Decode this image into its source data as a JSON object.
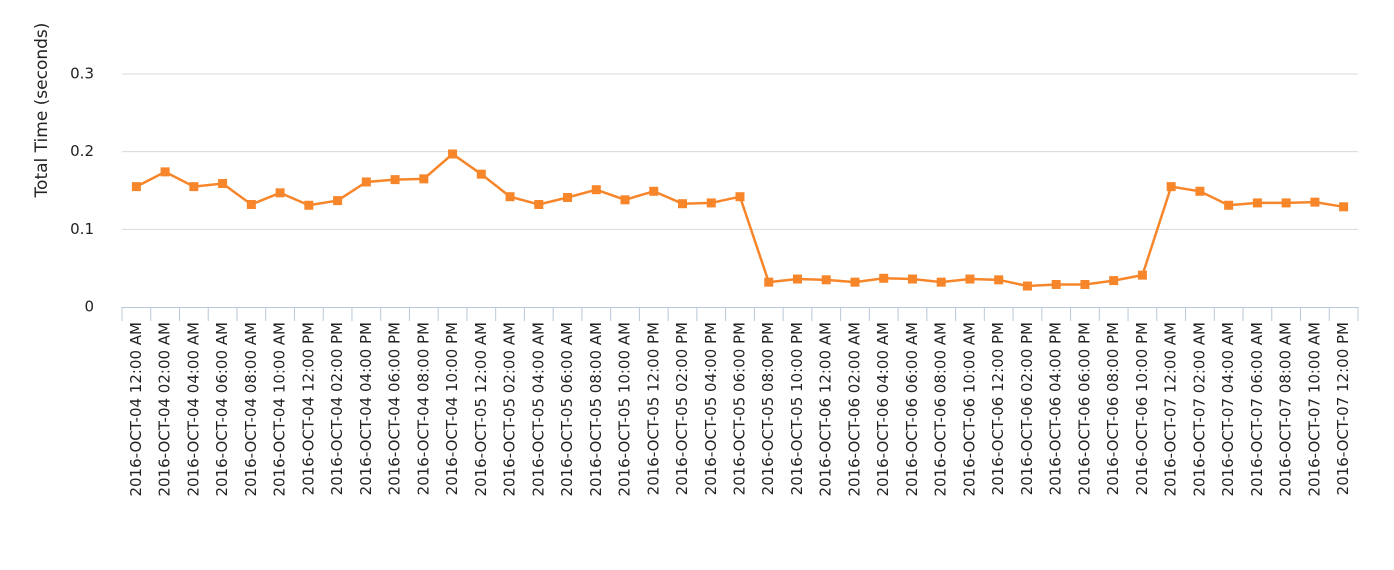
{
  "chart_data": {
    "type": "line",
    "y_label": "Total Time (seconds)",
    "categories": [
      "2016-OCT-04 12:00 AM",
      "2016-OCT-04 02:00 AM",
      "2016-OCT-04 04:00 AM",
      "2016-OCT-04 06:00 AM",
      "2016-OCT-04 08:00 AM",
      "2016-OCT-04 10:00 AM",
      "2016-OCT-04 12:00 PM",
      "2016-OCT-04 02:00 PM",
      "2016-OCT-04 04:00 PM",
      "2016-OCT-04 06:00 PM",
      "2016-OCT-04 08:00 PM",
      "2016-OCT-04 10:00 PM",
      "2016-OCT-05 12:00 AM",
      "2016-OCT-05 02:00 AM",
      "2016-OCT-05 04:00 AM",
      "2016-OCT-05 06:00 AM",
      "2016-OCT-05 08:00 AM",
      "2016-OCT-05 10:00 AM",
      "2016-OCT-05 12:00 PM",
      "2016-OCT-05 02:00 PM",
      "2016-OCT-05 04:00 PM",
      "2016-OCT-05 06:00 PM",
      "2016-OCT-05 08:00 PM",
      "2016-OCT-05 10:00 PM",
      "2016-OCT-06 12:00 AM",
      "2016-OCT-06 02:00 AM",
      "2016-OCT-06 04:00 AM",
      "2016-OCT-06 06:00 AM",
      "2016-OCT-06 08:00 AM",
      "2016-OCT-06 10:00 AM",
      "2016-OCT-06 12:00 PM",
      "2016-OCT-06 02:00 PM",
      "2016-OCT-06 04:00 PM",
      "2016-OCT-06 06:00 PM",
      "2016-OCT-06 08:00 PM",
      "2016-OCT-06 10:00 PM",
      "2016-OCT-07 12:00 AM",
      "2016-OCT-07 02:00 AM",
      "2016-OCT-07 04:00 AM",
      "2016-OCT-07 06:00 AM",
      "2016-OCT-07 08:00 AM",
      "2016-OCT-07 10:00 AM",
      "2016-OCT-07 12:00 PM"
    ],
    "values": [
      0.155,
      0.174,
      0.155,
      0.159,
      0.132,
      0.147,
      0.131,
      0.137,
      0.161,
      0.164,
      0.165,
      0.197,
      0.171,
      0.142,
      0.132,
      0.141,
      0.151,
      0.138,
      0.149,
      0.133,
      0.134,
      0.142,
      0.032,
      0.036,
      0.035,
      0.032,
      0.037,
      0.036,
      0.032,
      0.036,
      0.035,
      0.027,
      0.029,
      0.029,
      0.034,
      0.041,
      0.155,
      0.149,
      0.131,
      0.134,
      0.134,
      0.135,
      0.129
    ],
    "color": "#f7862a",
    "ylim": [
      0,
      0.3
    ],
    "yticks": [
      0,
      0.1,
      0.2,
      0.3
    ],
    "grid": true
  }
}
